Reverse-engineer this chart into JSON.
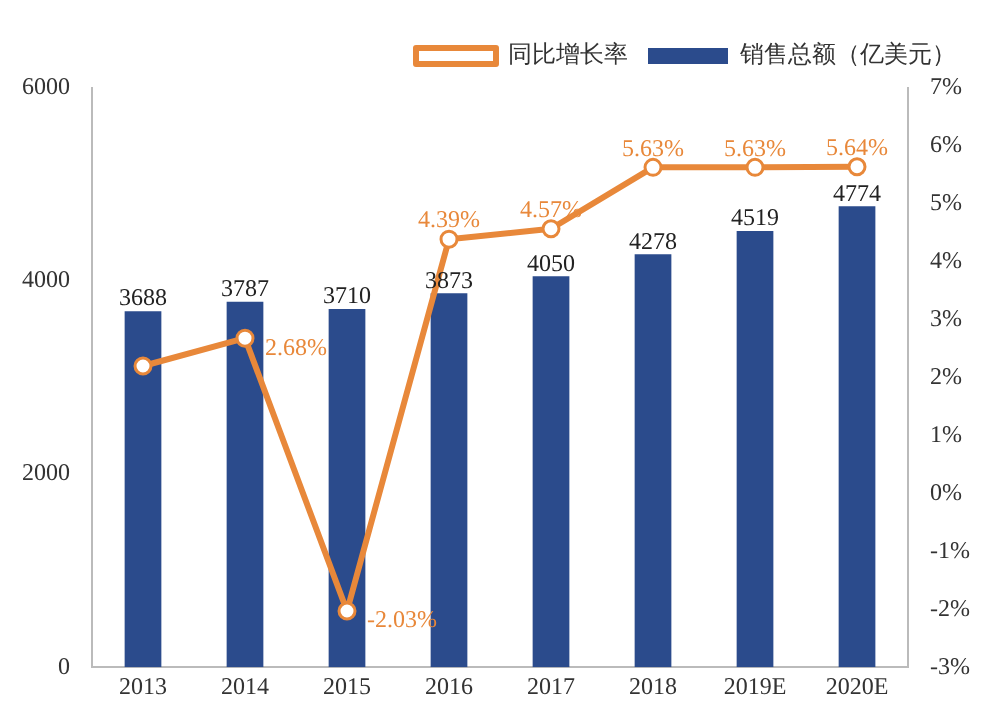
{
  "chart_data": {
    "type": "bar",
    "categories": [
      "2013",
      "2014",
      "2015",
      "2016",
      "2017",
      "2018",
      "2019E",
      "2020E"
    ],
    "series": [
      {
        "name": "销售总额（亿美元）",
        "color": "#2b4b8c",
        "values": [
          3688,
          3787,
          3710,
          3873,
          4050,
          4278,
          4519,
          4774
        ],
        "value_labels": [
          "3688",
          "3787",
          "3710",
          "3873",
          "4050",
          "4278",
          "4519",
          "4774"
        ]
      },
      {
        "name": "同比增长率",
        "type": "line",
        "axis": "y2",
        "color": "#e8883a",
        "marker": "circle",
        "values": [
          2.2,
          2.68,
          -2.03,
          4.39,
          4.57,
          5.63,
          5.63,
          5.64
        ],
        "value_labels": [
          null,
          "2.68%",
          "-2.03%",
          "4.39%",
          "4.57%",
          "5.63%",
          "5.63%",
          "5.64%"
        ]
      }
    ],
    "ylim": [
      0,
      6000
    ],
    "yticks": [
      0,
      2000,
      4000,
      6000
    ],
    "y2lim": [
      -3,
      7
    ],
    "y2ticks": [
      {
        "value": -3,
        "label": "-3%"
      },
      {
        "value": -2,
        "label": "-2%"
      },
      {
        "value": -1,
        "label": "-1%"
      },
      {
        "value": 0,
        "label": "0%"
      },
      {
        "value": 1,
        "label": "1%"
      },
      {
        "value": 2,
        "label": "2%"
      },
      {
        "value": 3,
        "label": "3%"
      },
      {
        "value": 4,
        "label": "4%"
      },
      {
        "value": 5,
        "label": "5%"
      },
      {
        "value": 6,
        "label": "6%"
      },
      {
        "value": 7,
        "label": "7%"
      }
    ],
    "legend": "top",
    "grid": false
  }
}
